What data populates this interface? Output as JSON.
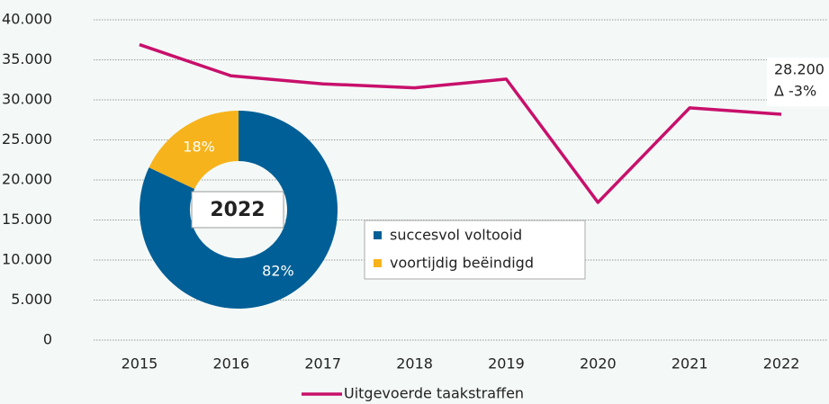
{
  "chart_data": [
    {
      "type": "line",
      "categories": [
        "2015",
        "2016",
        "2017",
        "2018",
        "2019",
        "2020",
        "2021",
        "2022"
      ],
      "series": [
        {
          "name": "Uitgevoerde taakstraffen",
          "color": "#c8106b",
          "values": [
            36900,
            33000,
            32000,
            31500,
            32600,
            17200,
            29000,
            28200
          ]
        }
      ],
      "ylim": [
        0,
        40000
      ],
      "yticks": [
        0,
        {
          "value": 5000,
          "label": "5.000"
        },
        {
          "value": 10000,
          "label": "10.000"
        },
        {
          "value": 15000,
          "label": "15.000"
        },
        {
          "value": 20000,
          "label": "20.000"
        },
        {
          "value": 25000,
          "label": "25.000"
        },
        {
          "value": 30000,
          "label": "30.000"
        },
        {
          "value": 35000,
          "label": "35.000"
        },
        {
          "value": 40000,
          "label": "40.000"
        }
      ],
      "grid": true,
      "annotations": [
        "28.200",
        "Δ -3%"
      ]
    },
    {
      "type": "donut",
      "title": "2022",
      "categories": [
        "succesvol voltooid",
        "voortijdig beëindigd"
      ],
      "values": [
        82,
        18
      ],
      "value_labels": [
        "82%",
        "18%"
      ],
      "colors": [
        "#005f96",
        "#f7b31b"
      ]
    }
  ]
}
